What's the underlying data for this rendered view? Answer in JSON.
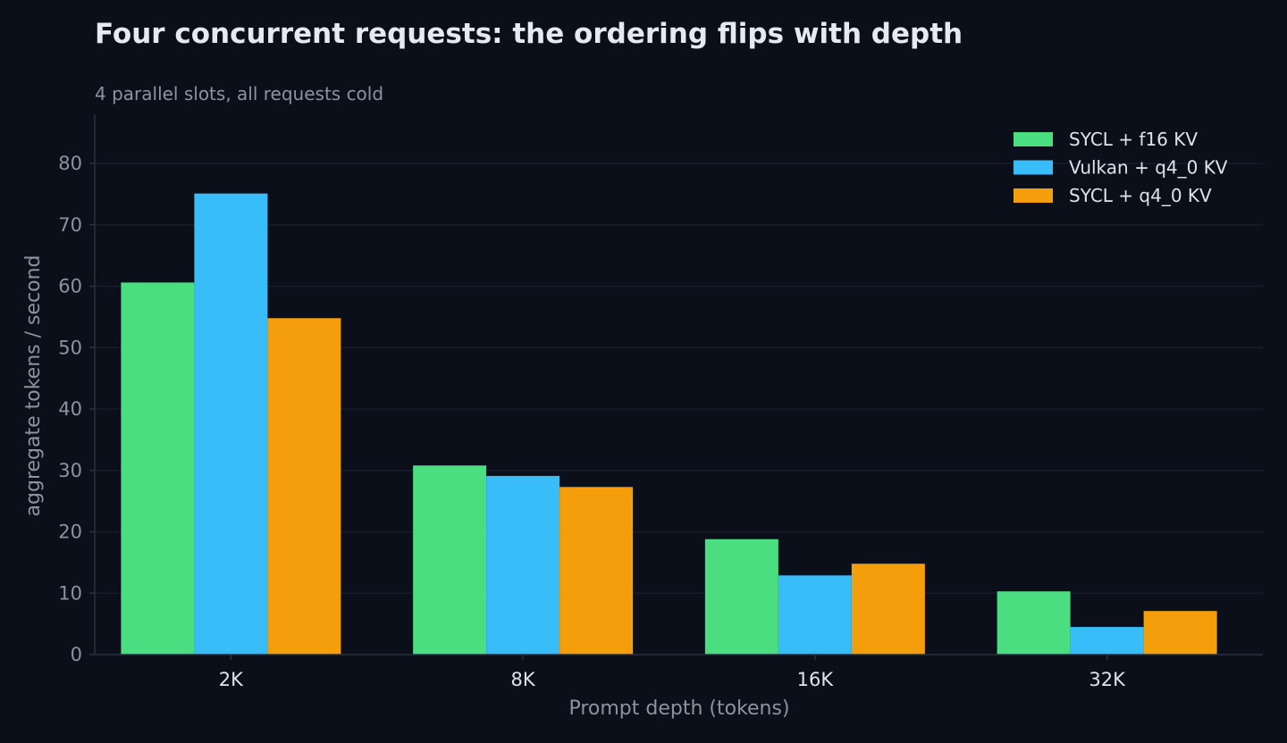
{
  "chart_data": {
    "type": "bar",
    "title": "Four concurrent requests: the ordering flips with depth",
    "subtitle": "4 parallel slots, all requests cold",
    "xlabel": "Prompt depth (tokens)",
    "ylabel": "aggregate tokens / second",
    "categories": [
      "2K",
      "8K",
      "16K",
      "32K"
    ],
    "ylim": [
      0,
      88
    ],
    "yticks": [
      0,
      10,
      20,
      30,
      40,
      50,
      60,
      70,
      80
    ],
    "grid": "horizontal",
    "legend_position": "top-right",
    "series": [
      {
        "name": "SYCL + f16 KV",
        "color": "#4ade80",
        "values": [
          60.6,
          30.8,
          18.8,
          10.3
        ]
      },
      {
        "name": "Vulkan + q4_0 KV",
        "color": "#38bdf8",
        "values": [
          75.1,
          29.1,
          12.9,
          4.5
        ]
      },
      {
        "name": "SYCL + q4_0 KV",
        "color": "#f59e0b",
        "values": [
          54.8,
          27.3,
          14.8,
          7.1
        ]
      }
    ]
  }
}
